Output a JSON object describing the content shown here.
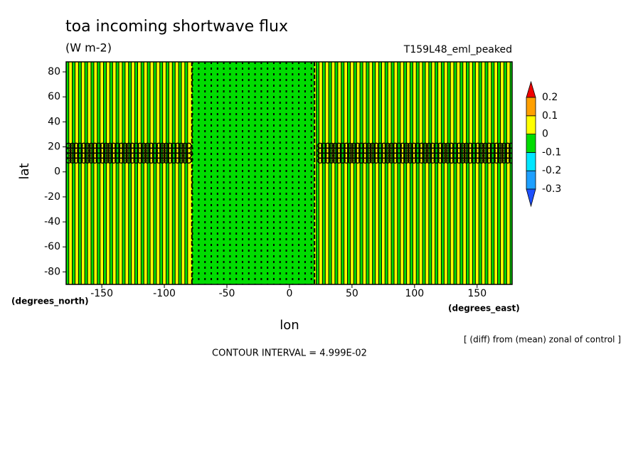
{
  "chart_data": {
    "type": "contour",
    "title": "toa incoming shortwave flux",
    "subtitle": "(W m-2)",
    "experiment": "T159L48_eml_peaked",
    "x_label": "lon",
    "y_label": "lat",
    "x_units": "(degrees_east)",
    "y_units": "(degrees_north)",
    "note": "[ (diff) from (mean) zonal of control ]",
    "contour_interval": "CONTOUR INTERVAL = 4.999E-02",
    "xlim": [
      -178.5,
      178
    ],
    "ylim": [
      -90,
      88
    ],
    "xticks": [
      -150,
      -100,
      -50,
      0,
      50,
      100,
      150
    ],
    "yticks": [
      -80,
      -60,
      -40,
      -20,
      0,
      20,
      40,
      60,
      80
    ],
    "background_value": 0.05,
    "band": {
      "lon": [
        -78,
        20
      ],
      "value": -0.05
    },
    "stripes": {
      "start": -177.5,
      "step": 5,
      "value": -0.05
    },
    "circle_rows": {
      "lat": [
        9,
        13,
        17,
        21
      ],
      "step": 3,
      "value": 0
    },
    "levels": [
      -0.3,
      -0.2,
      -0.1,
      0,
      0.1,
      0.2
    ],
    "colors": [
      "#1e50ff",
      "#1ea0ff",
      "#00e6ff",
      "#00dc00",
      "#ffff00",
      "#ffa000",
      "#f00000"
    ]
  }
}
